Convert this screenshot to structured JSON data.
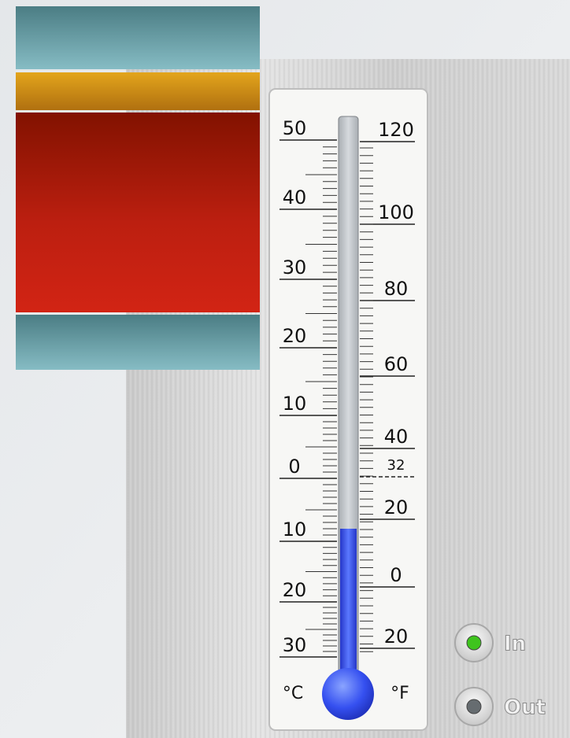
{
  "celsius_labels": [
    "50",
    "40",
    "30",
    "20",
    "10",
    "0",
    "10",
    "20",
    "30"
  ],
  "fahrenheit_labels": [
    "120",
    "100",
    "80",
    "60",
    "40",
    "32",
    "20",
    "0",
    "20"
  ],
  "units": {
    "celsius": "°C",
    "fahrenheit": "°F"
  },
  "options": [
    {
      "label": "In",
      "selected": true
    },
    {
      "label": "Out",
      "selected": false
    }
  ]
}
